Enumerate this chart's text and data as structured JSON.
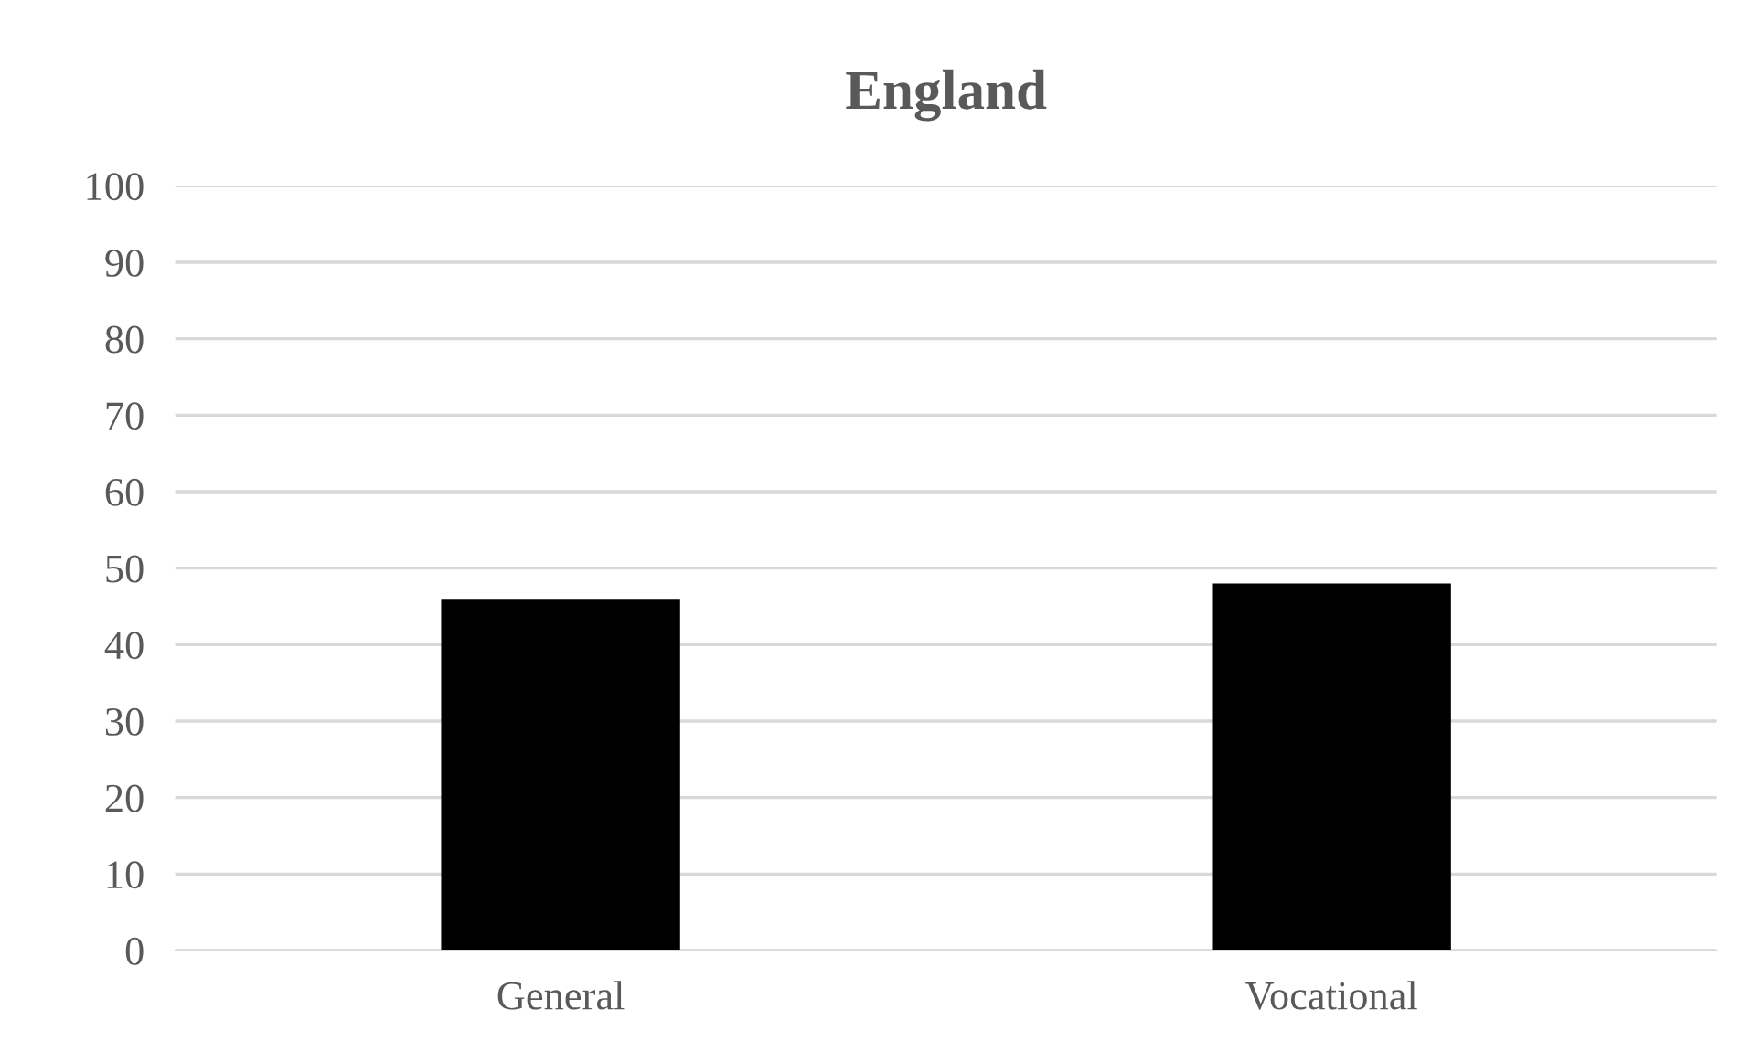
{
  "chart_data": {
    "type": "bar",
    "title": "England",
    "categories": [
      "General",
      "Vocational"
    ],
    "values": [
      46,
      48
    ],
    "color": "#000000",
    "ylim": [
      0,
      100
    ],
    "yticks": [
      0,
      10,
      20,
      30,
      40,
      50,
      60,
      70,
      80,
      90,
      100
    ],
    "grid": "y"
  }
}
